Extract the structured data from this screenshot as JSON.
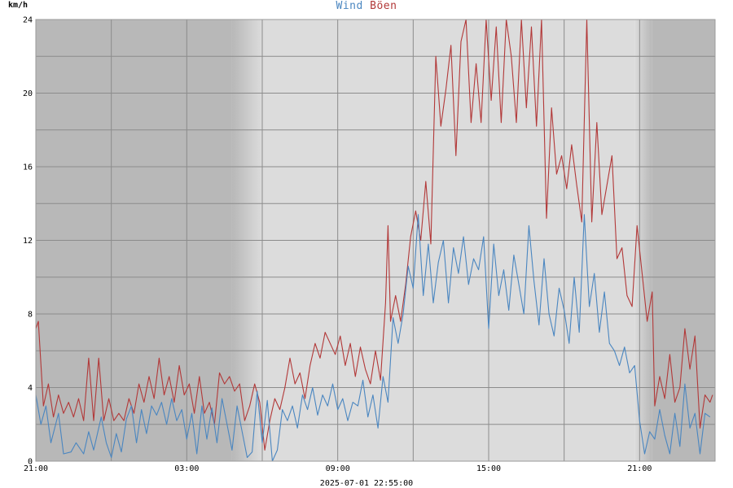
{
  "title": {
    "wind_label": "Wind",
    "gust_label": "Böen"
  },
  "y_unit": "km/h",
  "timestamp": "2025-07-01 22:55:00",
  "colors": {
    "wind": "#4a86c0",
    "gust": "#b23838",
    "night": "#b8b8b8",
    "day": "#dcdcdc",
    "grid": "#8c8c8c",
    "frame": "#9a9a9a"
  },
  "chart_data": {
    "type": "line",
    "title": "Wind Böen",
    "ylabel": "km/h",
    "xlabel": "",
    "ylim": [
      0,
      24
    ],
    "x_range_hours": [
      0,
      27
    ],
    "x_origin_label": "21:00",
    "yticks": [
      0,
      4,
      8,
      12,
      16,
      20,
      24
    ],
    "xticks": [
      {
        "h": 0,
        "label": "21:00"
      },
      {
        "h": 6,
        "label": "03:00"
      },
      {
        "h": 12,
        "label": "09:00"
      },
      {
        "h": 18,
        "label": "15:00"
      },
      {
        "h": 24,
        "label": "21:00"
      }
    ],
    "grid": true,
    "background_bands": [
      {
        "type": "night",
        "from": 0,
        "to": 7.8
      },
      {
        "type": "twilight",
        "from": 7.8,
        "to": 9.0
      },
      {
        "type": "day",
        "from": 9.0,
        "to": 23.8
      },
      {
        "type": "twilight",
        "from": 23.8,
        "to": 24.5
      },
      {
        "type": "night",
        "from": 24.5,
        "to": 27.0
      }
    ],
    "series": [
      {
        "name": "Wind",
        "color": "#4a86c0",
        "points": [
          [
            0.0,
            3.6
          ],
          [
            0.2,
            2.0
          ],
          [
            0.4,
            3.0
          ],
          [
            0.6,
            1.0
          ],
          [
            0.9,
            2.6
          ],
          [
            1.1,
            0.4
          ],
          [
            1.4,
            0.5
          ],
          [
            1.6,
            1.0
          ],
          [
            1.9,
            0.4
          ],
          [
            2.1,
            1.6
          ],
          [
            2.3,
            0.6
          ],
          [
            2.6,
            2.4
          ],
          [
            2.8,
            1.0
          ],
          [
            3.0,
            0.2
          ],
          [
            3.2,
            1.5
          ],
          [
            3.4,
            0.5
          ],
          [
            3.6,
            2.3
          ],
          [
            3.8,
            3.0
          ],
          [
            4.0,
            1.0
          ],
          [
            4.2,
            2.8
          ],
          [
            4.4,
            1.5
          ],
          [
            4.6,
            3.0
          ],
          [
            4.8,
            2.5
          ],
          [
            5.0,
            3.2
          ],
          [
            5.2,
            2.0
          ],
          [
            5.4,
            3.4
          ],
          [
            5.6,
            2.2
          ],
          [
            5.8,
            2.8
          ],
          [
            6.0,
            1.2
          ],
          [
            6.2,
            2.6
          ],
          [
            6.4,
            0.4
          ],
          [
            6.6,
            3.0
          ],
          [
            6.8,
            1.2
          ],
          [
            7.0,
            2.9
          ],
          [
            7.2,
            1.0
          ],
          [
            7.4,
            3.4
          ],
          [
            7.6,
            2.0
          ],
          [
            7.8,
            0.6
          ],
          [
            8.0,
            3.0
          ],
          [
            8.2,
            1.6
          ],
          [
            8.4,
            0.2
          ],
          [
            8.6,
            0.5
          ],
          [
            8.8,
            3.8
          ],
          [
            9.0,
            1.0
          ],
          [
            9.2,
            3.3
          ],
          [
            9.4,
            0.0
          ],
          [
            9.6,
            0.6
          ],
          [
            9.8,
            2.8
          ],
          [
            10.0,
            2.2
          ],
          [
            10.2,
            3.0
          ],
          [
            10.4,
            1.8
          ],
          [
            10.6,
            3.6
          ],
          [
            10.8,
            2.8
          ],
          [
            11.0,
            4.0
          ],
          [
            11.2,
            2.5
          ],
          [
            11.4,
            3.6
          ],
          [
            11.6,
            3.0
          ],
          [
            11.8,
            4.2
          ],
          [
            12.0,
            2.8
          ],
          [
            12.2,
            3.4
          ],
          [
            12.4,
            2.2
          ],
          [
            12.6,
            3.2
          ],
          [
            12.8,
            3.0
          ],
          [
            13.0,
            4.4
          ],
          [
            13.2,
            2.4
          ],
          [
            13.4,
            3.6
          ],
          [
            13.6,
            1.8
          ],
          [
            13.8,
            4.6
          ],
          [
            14.0,
            3.2
          ],
          [
            14.2,
            7.8
          ],
          [
            14.4,
            6.4
          ],
          [
            14.6,
            8.0
          ],
          [
            14.8,
            10.6
          ],
          [
            15.0,
            9.4
          ],
          [
            15.2,
            13.4
          ],
          [
            15.4,
            9.0
          ],
          [
            15.6,
            11.8
          ],
          [
            15.8,
            8.6
          ],
          [
            16.0,
            10.8
          ],
          [
            16.2,
            12.0
          ],
          [
            16.4,
            8.6
          ],
          [
            16.6,
            11.6
          ],
          [
            16.8,
            10.2
          ],
          [
            17.0,
            12.2
          ],
          [
            17.2,
            9.6
          ],
          [
            17.4,
            11.0
          ],
          [
            17.6,
            10.4
          ],
          [
            17.8,
            12.2
          ],
          [
            18.0,
            7.2
          ],
          [
            18.2,
            11.8
          ],
          [
            18.4,
            9.0
          ],
          [
            18.6,
            10.4
          ],
          [
            18.8,
            8.2
          ],
          [
            19.0,
            11.2
          ],
          [
            19.2,
            9.6
          ],
          [
            19.4,
            8.0
          ],
          [
            19.6,
            12.8
          ],
          [
            19.8,
            9.8
          ],
          [
            20.0,
            7.4
          ],
          [
            20.2,
            11.0
          ],
          [
            20.4,
            8.0
          ],
          [
            20.6,
            6.8
          ],
          [
            20.8,
            9.4
          ],
          [
            21.0,
            8.2
          ],
          [
            21.2,
            6.4
          ],
          [
            21.4,
            10.0
          ],
          [
            21.6,
            7.0
          ],
          [
            21.8,
            13.4
          ],
          [
            22.0,
            8.4
          ],
          [
            22.2,
            10.2
          ],
          [
            22.4,
            7.0
          ],
          [
            22.6,
            9.2
          ],
          [
            22.8,
            6.4
          ],
          [
            23.0,
            6.0
          ],
          [
            23.2,
            5.2
          ],
          [
            23.4,
            6.2
          ],
          [
            23.6,
            4.8
          ],
          [
            23.8,
            5.2
          ],
          [
            24.0,
            2.2
          ],
          [
            24.2,
            0.4
          ],
          [
            24.4,
            1.6
          ],
          [
            24.6,
            1.2
          ],
          [
            24.8,
            2.8
          ],
          [
            25.0,
            1.4
          ],
          [
            25.2,
            0.4
          ],
          [
            25.4,
            2.6
          ],
          [
            25.6,
            0.8
          ],
          [
            25.8,
            4.2
          ],
          [
            26.0,
            1.8
          ],
          [
            26.2,
            2.6
          ],
          [
            26.4,
            0.4
          ],
          [
            26.6,
            2.6
          ],
          [
            26.8,
            2.4
          ]
        ]
      },
      {
        "name": "Böen",
        "color": "#b23838",
        "points": [
          [
            0.0,
            7.2
          ],
          [
            0.1,
            7.6
          ],
          [
            0.3,
            3.0
          ],
          [
            0.5,
            4.2
          ],
          [
            0.7,
            2.4
          ],
          [
            0.9,
            3.6
          ],
          [
            1.1,
            2.6
          ],
          [
            1.3,
            3.2
          ],
          [
            1.5,
            2.4
          ],
          [
            1.7,
            3.4
          ],
          [
            1.9,
            2.2
          ],
          [
            2.1,
            5.6
          ],
          [
            2.3,
            2.2
          ],
          [
            2.5,
            5.6
          ],
          [
            2.7,
            2.2
          ],
          [
            2.9,
            3.4
          ],
          [
            3.1,
            2.2
          ],
          [
            3.3,
            2.6
          ],
          [
            3.5,
            2.2
          ],
          [
            3.7,
            3.4
          ],
          [
            3.9,
            2.6
          ],
          [
            4.1,
            4.2
          ],
          [
            4.3,
            3.2
          ],
          [
            4.5,
            4.6
          ],
          [
            4.7,
            3.4
          ],
          [
            4.9,
            5.6
          ],
          [
            5.1,
            3.6
          ],
          [
            5.3,
            4.6
          ],
          [
            5.5,
            3.2
          ],
          [
            5.7,
            5.2
          ],
          [
            5.9,
            3.6
          ],
          [
            6.1,
            4.2
          ],
          [
            6.3,
            2.6
          ],
          [
            6.5,
            4.6
          ],
          [
            6.7,
            2.6
          ],
          [
            6.9,
            3.2
          ],
          [
            7.1,
            2.0
          ],
          [
            7.3,
            4.8
          ],
          [
            7.5,
            4.2
          ],
          [
            7.7,
            4.6
          ],
          [
            7.9,
            3.8
          ],
          [
            8.1,
            4.2
          ],
          [
            8.3,
            2.2
          ],
          [
            8.5,
            3.0
          ],
          [
            8.7,
            4.2
          ],
          [
            8.9,
            3.2
          ],
          [
            9.1,
            0.6
          ],
          [
            9.3,
            2.2
          ],
          [
            9.5,
            3.4
          ],
          [
            9.7,
            2.8
          ],
          [
            9.9,
            4.0
          ],
          [
            10.1,
            5.6
          ],
          [
            10.3,
            4.2
          ],
          [
            10.5,
            4.8
          ],
          [
            10.7,
            3.4
          ],
          [
            10.9,
            5.2
          ],
          [
            11.1,
            6.4
          ],
          [
            11.3,
            5.6
          ],
          [
            11.5,
            7.0
          ],
          [
            11.7,
            6.4
          ],
          [
            11.9,
            5.8
          ],
          [
            12.1,
            6.8
          ],
          [
            12.3,
            5.2
          ],
          [
            12.5,
            6.4
          ],
          [
            12.7,
            4.6
          ],
          [
            12.9,
            6.2
          ],
          [
            13.1,
            5.0
          ],
          [
            13.3,
            4.2
          ],
          [
            13.5,
            6.0
          ],
          [
            13.7,
            4.4
          ],
          [
            13.9,
            8.6
          ],
          [
            14.0,
            12.8
          ],
          [
            14.1,
            7.6
          ],
          [
            14.3,
            9.0
          ],
          [
            14.5,
            7.6
          ],
          [
            14.7,
            9.6
          ],
          [
            14.9,
            12.2
          ],
          [
            15.1,
            13.6
          ],
          [
            15.3,
            12.0
          ],
          [
            15.5,
            15.2
          ],
          [
            15.7,
            11.8
          ],
          [
            15.9,
            22.0
          ],
          [
            16.1,
            18.2
          ],
          [
            16.3,
            20.2
          ],
          [
            16.5,
            22.6
          ],
          [
            16.7,
            16.6
          ],
          [
            16.9,
            22.8
          ],
          [
            17.1,
            24.0
          ],
          [
            17.3,
            18.4
          ],
          [
            17.5,
            21.6
          ],
          [
            17.7,
            18.4
          ],
          [
            17.9,
            24.0
          ],
          [
            18.1,
            19.6
          ],
          [
            18.3,
            23.6
          ],
          [
            18.5,
            18.4
          ],
          [
            18.7,
            24.0
          ],
          [
            18.9,
            22.0
          ],
          [
            19.1,
            18.4
          ],
          [
            19.3,
            24.0
          ],
          [
            19.5,
            19.2
          ],
          [
            19.7,
            23.6
          ],
          [
            19.9,
            18.2
          ],
          [
            20.1,
            24.0
          ],
          [
            20.3,
            13.2
          ],
          [
            20.5,
            19.2
          ],
          [
            20.7,
            15.6
          ],
          [
            20.9,
            16.6
          ],
          [
            21.1,
            14.8
          ],
          [
            21.3,
            17.2
          ],
          [
            21.5,
            15.0
          ],
          [
            21.7,
            13.0
          ],
          [
            21.9,
            24.0
          ],
          [
            22.1,
            13.0
          ],
          [
            22.3,
            18.4
          ],
          [
            22.5,
            13.4
          ],
          [
            22.7,
            15.0
          ],
          [
            22.9,
            16.6
          ],
          [
            23.1,
            11.0
          ],
          [
            23.3,
            11.6
          ],
          [
            23.5,
            9.0
          ],
          [
            23.7,
            8.4
          ],
          [
            23.9,
            12.8
          ],
          [
            24.1,
            10.2
          ],
          [
            24.3,
            7.6
          ],
          [
            24.5,
            9.2
          ],
          [
            24.6,
            3.0
          ],
          [
            24.8,
            4.6
          ],
          [
            25.0,
            3.4
          ],
          [
            25.2,
            5.8
          ],
          [
            25.4,
            3.2
          ],
          [
            25.6,
            4.0
          ],
          [
            25.8,
            7.2
          ],
          [
            26.0,
            5.0
          ],
          [
            26.2,
            6.8
          ],
          [
            26.4,
            1.8
          ],
          [
            26.6,
            3.6
          ],
          [
            26.8,
            3.2
          ],
          [
            26.9,
            3.6
          ]
        ]
      }
    ]
  }
}
